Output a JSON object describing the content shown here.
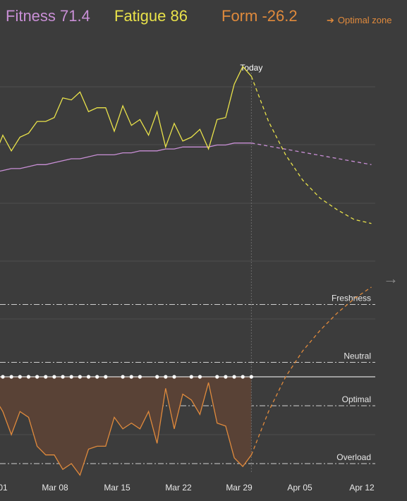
{
  "header": {
    "fitness_label": "Fitness 71.4",
    "fatigue_label": "Fatigue 86",
    "form_label": "Form -26.2",
    "optimal_zone_link": "Optimal zone",
    "optimal_zone_icon": "arrow-right-icon"
  },
  "nav": {
    "next_icon": "arrow-right-icon"
  },
  "colors": {
    "fitness": "#c98fd6",
    "fatigue": "#e9e24a",
    "form": "#e08a3c",
    "background": "#3c3c3c"
  },
  "chart_data": {
    "type": "line",
    "x_unit": "date",
    "x_tick_labels": [
      "01",
      "Mar 08",
      "Mar 15",
      "Mar 22",
      "Mar 29",
      "Apr 05",
      "Apr 12"
    ],
    "today_label": "Today",
    "today_date": "Mar 30",
    "zone_labels": [
      "Freshness",
      "Neutral",
      "Optimal",
      "Overload"
    ],
    "zone_values": [
      25,
      5,
      -10,
      -30
    ],
    "form_ylim": [
      -33,
      45
    ],
    "grid": true,
    "series": [
      {
        "name": "Fatigue",
        "dates": [
          "Feb 28",
          "Mar 01",
          "Mar 02",
          "Mar 03",
          "Mar 04",
          "Mar 05",
          "Mar 06",
          "Mar 07",
          "Mar 08",
          "Mar 09",
          "Mar 10",
          "Mar 11",
          "Mar 12",
          "Mar 13",
          "Mar 14",
          "Mar 15",
          "Mar 16",
          "Mar 17",
          "Mar 18",
          "Mar 19",
          "Mar 20",
          "Mar 21",
          "Mar 22",
          "Mar 23",
          "Mar 24",
          "Mar 25",
          "Mar 26",
          "Mar 27",
          "Mar 28",
          "Mar 29",
          "Mar 30"
        ],
        "values": [
          69,
          80,
          72,
          79,
          81,
          87,
          87,
          89,
          99,
          98,
          102,
          92,
          94,
          94,
          82,
          95,
          85,
          88,
          80,
          92,
          74,
          86,
          77,
          79,
          83,
          73,
          88,
          89,
          106,
          115,
          110
        ],
        "projected_dates": [
          "Mar 30",
          "Apr 01",
          "Apr 03",
          "Apr 05",
          "Apr 07",
          "Apr 09",
          "Apr 11",
          "Apr 13"
        ],
        "projected_values": [
          110,
          87,
          70,
          57,
          48,
          42,
          37,
          35
        ]
      },
      {
        "name": "Fitness",
        "dates": [
          "Feb 28",
          "Mar 01",
          "Mar 02",
          "Mar 03",
          "Mar 04",
          "Mar 05",
          "Mar 06",
          "Mar 07",
          "Mar 08",
          "Mar 09",
          "Mar 10",
          "Mar 11",
          "Mar 12",
          "Mar 13",
          "Mar 14",
          "Mar 15",
          "Mar 16",
          "Mar 17",
          "Mar 18",
          "Mar 19",
          "Mar 20",
          "Mar 21",
          "Mar 22",
          "Mar 23",
          "Mar 24",
          "Mar 25",
          "Mar 26",
          "Mar 27",
          "Mar 28",
          "Mar 29",
          "Mar 30"
        ],
        "values": [
          61,
          62,
          63,
          63,
          64,
          65,
          65,
          66,
          67,
          68,
          68,
          69,
          70,
          70,
          70,
          71,
          71,
          72,
          72,
          72,
          73,
          73,
          74,
          74,
          74,
          74,
          75,
          75,
          76,
          76,
          76
        ],
        "projected_dates": [
          "Mar 30",
          "Apr 13"
        ],
        "projected_values": [
          76,
          65
        ]
      },
      {
        "name": "Form",
        "dates": [
          "Feb 28",
          "Mar 01",
          "Mar 02",
          "Mar 03",
          "Mar 04",
          "Mar 05",
          "Mar 06",
          "Mar 07",
          "Mar 08",
          "Mar 09",
          "Mar 10",
          "Mar 11",
          "Mar 12",
          "Mar 13",
          "Mar 14",
          "Mar 15",
          "Mar 16",
          "Mar 17",
          "Mar 18",
          "Mar 19",
          "Mar 20",
          "Mar 21",
          "Mar 22",
          "Mar 23",
          "Mar 24",
          "Mar 25",
          "Mar 26",
          "Mar 27",
          "Mar 28",
          "Mar 29",
          "Mar 30"
        ],
        "values": [
          -7,
          -12,
          -20,
          -12,
          -14,
          -24,
          -27,
          -27,
          -32,
          -30,
          -34,
          -25,
          -24,
          -24,
          -14,
          -18,
          -16,
          -18,
          -12,
          -23,
          -4,
          -18,
          -6,
          -8,
          -13,
          -2,
          -16,
          -17,
          -28,
          -31,
          -27
        ],
        "projected_dates": [
          "Mar 30",
          "Apr 01",
          "Apr 03",
          "Apr 05",
          "Apr 07",
          "Apr 09",
          "Apr 11",
          "Apr 13"
        ],
        "projected_values": [
          -27,
          -12,
          0,
          9,
          16,
          22,
          27,
          31
        ]
      },
      {
        "name": "Activity days",
        "dates": [
          "Mar 01",
          "Mar 02",
          "Mar 03",
          "Mar 04",
          "Mar 05",
          "Mar 06",
          "Mar 07",
          "Mar 08",
          "Mar 09",
          "Mar 10",
          "Mar 11",
          "Mar 12",
          "Mar 13",
          "Mar 15",
          "Mar 16",
          "Mar 17",
          "Mar 19",
          "Mar 20",
          "Mar 21",
          "Mar 23",
          "Mar 24",
          "Mar 26",
          "Mar 27",
          "Mar 28",
          "Mar 29",
          "Mar 30"
        ],
        "values": [
          0,
          0,
          0,
          0,
          0,
          0,
          0,
          0,
          0,
          0,
          0,
          0,
          0,
          0,
          0,
          0,
          0,
          0,
          0,
          0,
          0,
          0,
          0,
          0,
          0,
          0
        ]
      }
    ]
  }
}
